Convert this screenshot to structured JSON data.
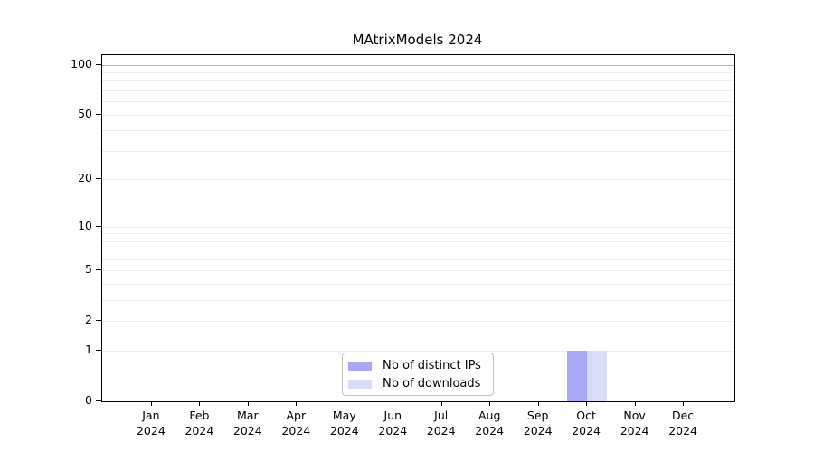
{
  "title": "MAtrixModels 2024",
  "chart_data": {
    "type": "bar",
    "title": "MAtrixModels 2024",
    "categories": [
      "Jan",
      "Feb",
      "Mar",
      "Apr",
      "May",
      "Jun",
      "Jul",
      "Aug",
      "Sep",
      "Oct",
      "Nov",
      "Dec"
    ],
    "category_year": "2024",
    "series": [
      {
        "name": "Nb of distinct IPs",
        "color": "#a8a8f6",
        "values": [
          0,
          0,
          0,
          0,
          0,
          0,
          0,
          0,
          0,
          1,
          0,
          0
        ]
      },
      {
        "name": "Nb of downloads",
        "color": "#dbdbfa",
        "values": [
          0,
          0,
          0,
          0,
          0,
          0,
          0,
          0,
          0,
          1,
          0,
          0
        ]
      }
    ],
    "yscale": "log1p",
    "ylim": [
      0,
      100
    ],
    "ytick_values": [
      0,
      1,
      2,
      5,
      10,
      20,
      50,
      100
    ],
    "ytick_labels": [
      "0",
      "1",
      "2",
      "5",
      "10",
      "20",
      "50",
      "100"
    ],
    "grid_values": [
      1,
      2,
      3,
      4,
      5,
      6,
      7,
      8,
      9,
      10,
      20,
      30,
      40,
      50,
      60,
      70,
      80,
      90
    ],
    "grid_emphasis_values": [
      100
    ],
    "grid": "horizontal-only",
    "legend_position": "bottom-center-inside",
    "xlabel": "",
    "ylabel": ""
  },
  "legend": {
    "items": [
      {
        "label": "Nb of distinct IPs",
        "color": "#a8a8f6"
      },
      {
        "label": "Nb of downloads",
        "color": "#dbdbfa"
      }
    ]
  }
}
